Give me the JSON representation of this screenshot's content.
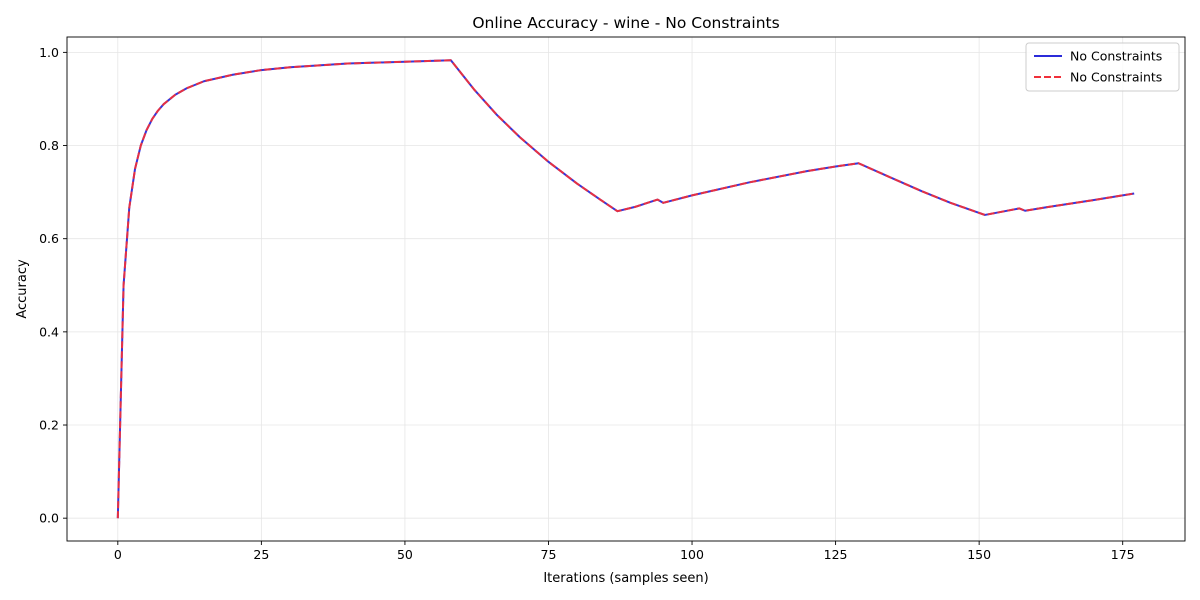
{
  "chart_data": {
    "type": "line",
    "title": "Online Accuracy - wine - No Constraints",
    "xlabel": "Iterations (samples seen)",
    "ylabel": "Accuracy",
    "xlim": [
      -8.85,
      185.85
    ],
    "ylim": [
      -0.049,
      1.033
    ],
    "xticks": [
      0,
      25,
      50,
      75,
      100,
      125,
      150,
      175
    ],
    "xtick_labels": [
      "0",
      "25",
      "50",
      "75",
      "100",
      "125",
      "150",
      "175"
    ],
    "yticks": [
      0.0,
      0.2,
      0.4,
      0.6,
      0.8,
      1.0
    ],
    "ytick_labels": [
      "0.0",
      "0.2",
      "0.4",
      "0.6",
      "0.8",
      "1.0"
    ],
    "grid": true,
    "legend_position": "top-right",
    "series": [
      {
        "name": "No Constraints",
        "color": "#2b2bd9",
        "style": "solid",
        "x": [
          0,
          1,
          2,
          3,
          4,
          5,
          6,
          7,
          8,
          10,
          12,
          15,
          20,
          25,
          30,
          40,
          50,
          58,
          62,
          66,
          70,
          75,
          80,
          84,
          87,
          90,
          94,
          95,
          100,
          110,
          120,
          125,
          129,
          135,
          140,
          145,
          151,
          154,
          157,
          158,
          162,
          170,
          177
        ],
        "y": [
          0.0,
          0.5,
          0.667,
          0.75,
          0.8,
          0.833,
          0.857,
          0.875,
          0.889,
          0.909,
          0.923,
          0.938,
          0.952,
          0.962,
          0.968,
          0.976,
          0.98,
          0.983,
          0.921,
          0.866,
          0.818,
          0.765,
          0.718,
          0.684,
          0.659,
          0.668,
          0.684,
          0.677,
          0.693,
          0.721,
          0.745,
          0.755,
          0.762,
          0.729,
          0.702,
          0.677,
          0.651,
          0.658,
          0.665,
          0.66,
          0.668,
          0.683,
          0.697
        ]
      },
      {
        "name": "No Constraints",
        "color": "#f0303a",
        "style": "dashed",
        "x": [
          0,
          1,
          2,
          3,
          4,
          5,
          6,
          7,
          8,
          10,
          12,
          15,
          20,
          25,
          30,
          40,
          50,
          58,
          62,
          66,
          70,
          75,
          80,
          84,
          87,
          90,
          94,
          95,
          100,
          110,
          120,
          125,
          129,
          135,
          140,
          145,
          151,
          154,
          157,
          158,
          162,
          170,
          177
        ],
        "y": [
          0.0,
          0.5,
          0.667,
          0.75,
          0.8,
          0.833,
          0.857,
          0.875,
          0.889,
          0.909,
          0.923,
          0.938,
          0.952,
          0.962,
          0.968,
          0.976,
          0.98,
          0.983,
          0.921,
          0.866,
          0.818,
          0.765,
          0.718,
          0.684,
          0.659,
          0.668,
          0.684,
          0.677,
          0.693,
          0.721,
          0.745,
          0.755,
          0.762,
          0.729,
          0.702,
          0.677,
          0.651,
          0.658,
          0.665,
          0.66,
          0.668,
          0.683,
          0.697
        ]
      }
    ]
  }
}
